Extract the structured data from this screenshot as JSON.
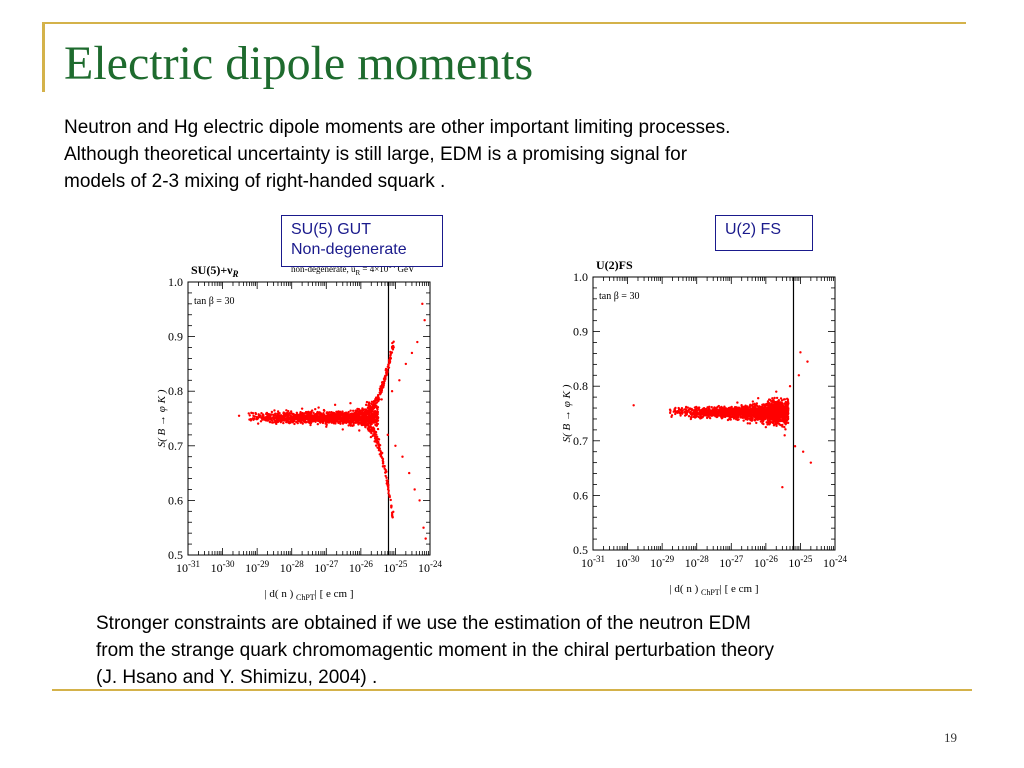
{
  "slide": {
    "title": "Electric dipole moments",
    "intro_lines": [
      "Neutron and Hg electric dipole moments are other important limiting processes.",
      "Although theoretical uncertainty is still large, EDM is a promising signal for",
      "models of 2-3 mixing of right-handed squark ."
    ],
    "label_left_lines": [
      "SU(5) GUT",
      "Non-degenerate"
    ],
    "label_right": "U(2) FS",
    "conclusion_lines": [
      "Stronger constraints are obtained if we use the estimation of the neutron EDM",
      "from the strange quark chromomagentic moment in the chiral perturbation theory",
      "(J. Hsano and Y. Shimizu, 2004) ."
    ],
    "page_number": "19",
    "colors": {
      "title": "#1e6b2e",
      "accent_rule": "#d4b24a",
      "points": "#ff0000",
      "label_box": "#1a1a8c"
    }
  },
  "chart_data": [
    {
      "type": "scatter",
      "model_label": "SU(5)+ν",
      "model_label_sub": "R",
      "annotation": "non-degenerate, u",
      "annotation_sub": "R",
      "annotation_value": "= 4×10",
      "annotation_exp": "14",
      "annotation_unit": "GeV",
      "tan_beta": "tan β = 30",
      "ylabel": "S( B → φ K )",
      "xlabel": "| d( n ) | [ e cm ]",
      "xlabel_sub": "ChPT",
      "x_scale": "log",
      "xlim": [
        1e-31,
        1e-24
      ],
      "ylim": [
        0.5,
        1.0
      ],
      "x_tick_labels": [
        "10-31",
        "10-30",
        "10-29",
        "10-28",
        "10-27",
        "10-26",
        "10-25",
        "10-24"
      ],
      "y_tick_labels": [
        "0.5",
        "0.6",
        "0.7",
        "0.8",
        "0.9",
        "1.0"
      ],
      "vertical_line_x": 6.3e-26,
      "shape": "central band at S≈0.755 from 10^-29 to ~10^-25.5, splitting into upper branch (to ~0.96) and lower branch (to ~0.52) beyond 10^-25.5",
      "series": [
        {
          "points": [
            [
              3e-30,
              0.755
            ],
            [
              6e-30,
              0.748
            ],
            [
              9e-30,
              0.76
            ],
            [
              1.5e-29,
              0.75
            ],
            [
              2.5e-29,
              0.757
            ],
            [
              4e-29,
              0.744
            ],
            [
              7e-29,
              0.765
            ],
            [
              1.2e-28,
              0.74
            ],
            [
              2e-28,
              0.768
            ],
            [
              3.5e-28,
              0.738
            ],
            [
              6e-28,
              0.77
            ],
            [
              1e-27,
              0.735
            ],
            [
              1.8e-27,
              0.775
            ],
            [
              3e-27,
              0.73
            ],
            [
              5e-27,
              0.778
            ],
            [
              9e-27,
              0.728
            ],
            [
              1.5e-26,
              0.78
            ],
            [
              2.5e-26,
              0.725
            ],
            [
              4e-26,
              0.785
            ],
            [
              6e-26,
              0.72
            ],
            [
              8e-26,
              0.8
            ],
            [
              1e-25,
              0.7
            ],
            [
              1.3e-25,
              0.82
            ],
            [
              1.6e-25,
              0.68
            ],
            [
              2e-25,
              0.85
            ],
            [
              2.5e-25,
              0.65
            ],
            [
              3e-25,
              0.87
            ],
            [
              3.6e-25,
              0.62
            ],
            [
              4.3e-25,
              0.89
            ],
            [
              5e-25,
              0.6
            ],
            [
              6e-25,
              0.96
            ],
            [
              6.5e-25,
              0.55
            ],
            [
              7e-25,
              0.93
            ],
            [
              7.5e-25,
              0.53
            ]
          ]
        }
      ]
    },
    {
      "type": "scatter",
      "model_label": "U(2)FS",
      "tan_beta": "tan β = 30",
      "ylabel": "S( B → φ K )",
      "xlabel": "| d( n ) | [ e cm ]",
      "xlabel_sub": "ChPT",
      "x_scale": "log",
      "xlim": [
        1e-31,
        1e-24
      ],
      "ylim": [
        0.5,
        1.0
      ],
      "x_tick_labels": [
        "10-31",
        "10-30",
        "10-29",
        "10-28",
        "10-27",
        "10-26",
        "10-25",
        "10-24"
      ],
      "y_tick_labels": [
        "0.5",
        "0.6",
        "0.7",
        "0.8",
        "0.9",
        "1.0"
      ],
      "vertical_line_x": 6.3e-26,
      "shape": "blob centered at S≈0.75 from ~10^-29 to ~10^-25.3, widening to 0.66–0.86 near the right edge",
      "series": [
        {
          "points": [
            [
              1.5e-30,
              0.765
            ],
            [
              3e-29,
              0.76
            ],
            [
              6e-29,
              0.745
            ],
            [
              1e-28,
              0.755
            ],
            [
              2e-28,
              0.742
            ],
            [
              4e-28,
              0.762
            ],
            [
              8e-28,
              0.738
            ],
            [
              1.5e-27,
              0.77
            ],
            [
              3e-27,
              0.732
            ],
            [
              6e-27,
              0.778
            ],
            [
              1e-26,
              0.725
            ],
            [
              2e-26,
              0.79
            ],
            [
              3.5e-26,
              0.71
            ],
            [
              5e-26,
              0.8
            ],
            [
              7e-26,
              0.69
            ],
            [
              9e-26,
              0.82
            ],
            [
              1.2e-25,
              0.68
            ],
            [
              1.6e-25,
              0.845
            ],
            [
              2e-25,
              0.66
            ],
            [
              3e-26,
              0.615
            ],
            [
              1e-25,
              0.862
            ]
          ]
        }
      ]
    }
  ]
}
